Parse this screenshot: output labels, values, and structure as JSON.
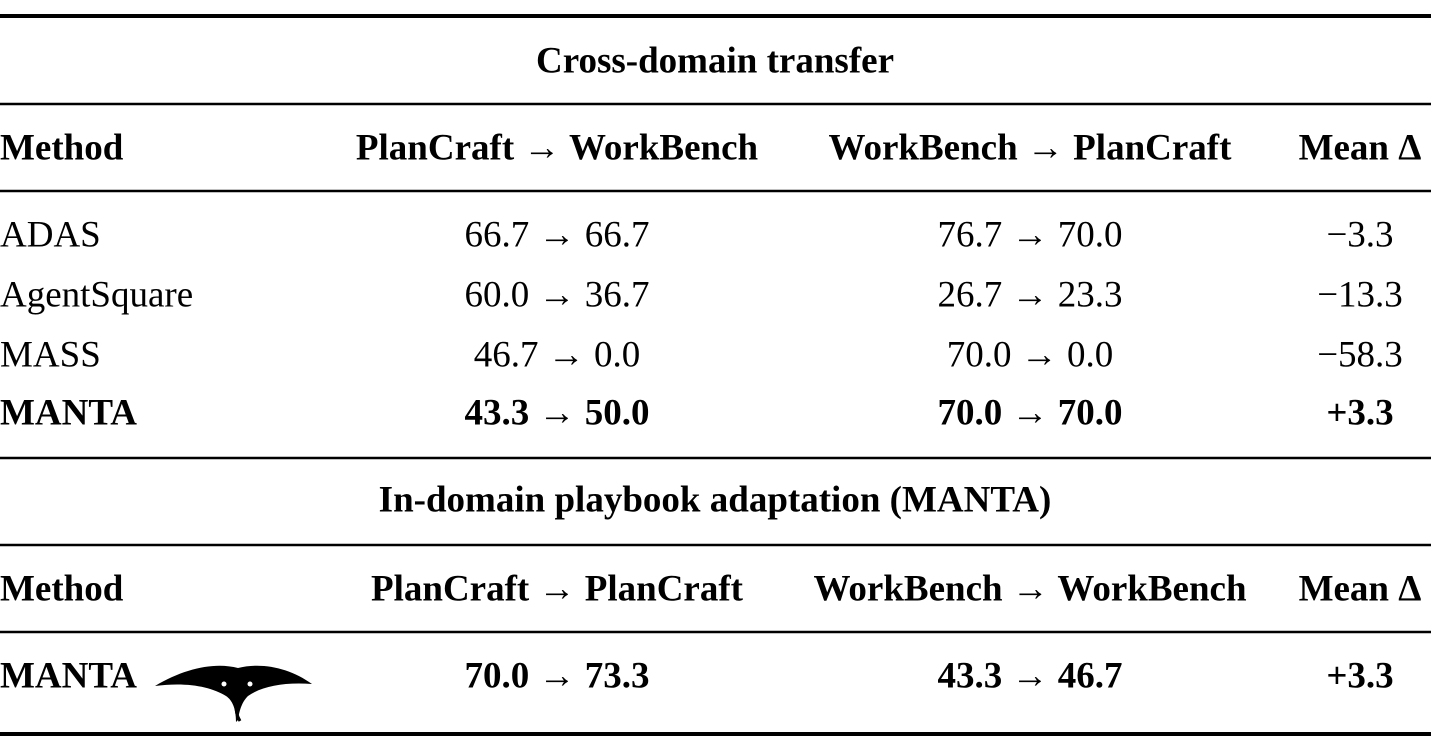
{
  "sections": [
    {
      "title": "Cross-domain transfer",
      "header": [
        "Method",
        "PlanCraft → WorkBench",
        "WorkBench → PlanCraft",
        "Mean Δ"
      ],
      "rows": [
        [
          "ADAS",
          "66.7 → 66.7",
          "76.7 → 70.0",
          "−3.3"
        ],
        [
          "AgentSquare",
          "60.0 → 36.7",
          "26.7 → 23.3",
          "−13.3"
        ],
        [
          "MASS",
          "46.7 → 0.0",
          "70.0 → 0.0",
          "−58.3"
        ],
        [
          "MANTA",
          "43.3 → 50.0",
          "70.0 → 70.0",
          "+3.3"
        ]
      ]
    },
    {
      "title": "In-domain playbook adaptation (MANTA)",
      "header": [
        "Method",
        "PlanCraft → PlanCraft",
        "WorkBench → WorkBench",
        "Mean Δ"
      ],
      "rows": [
        [
          "MANTA",
          "70.0 → 73.3",
          "43.3 → 46.7",
          "+3.3"
        ]
      ]
    }
  ]
}
